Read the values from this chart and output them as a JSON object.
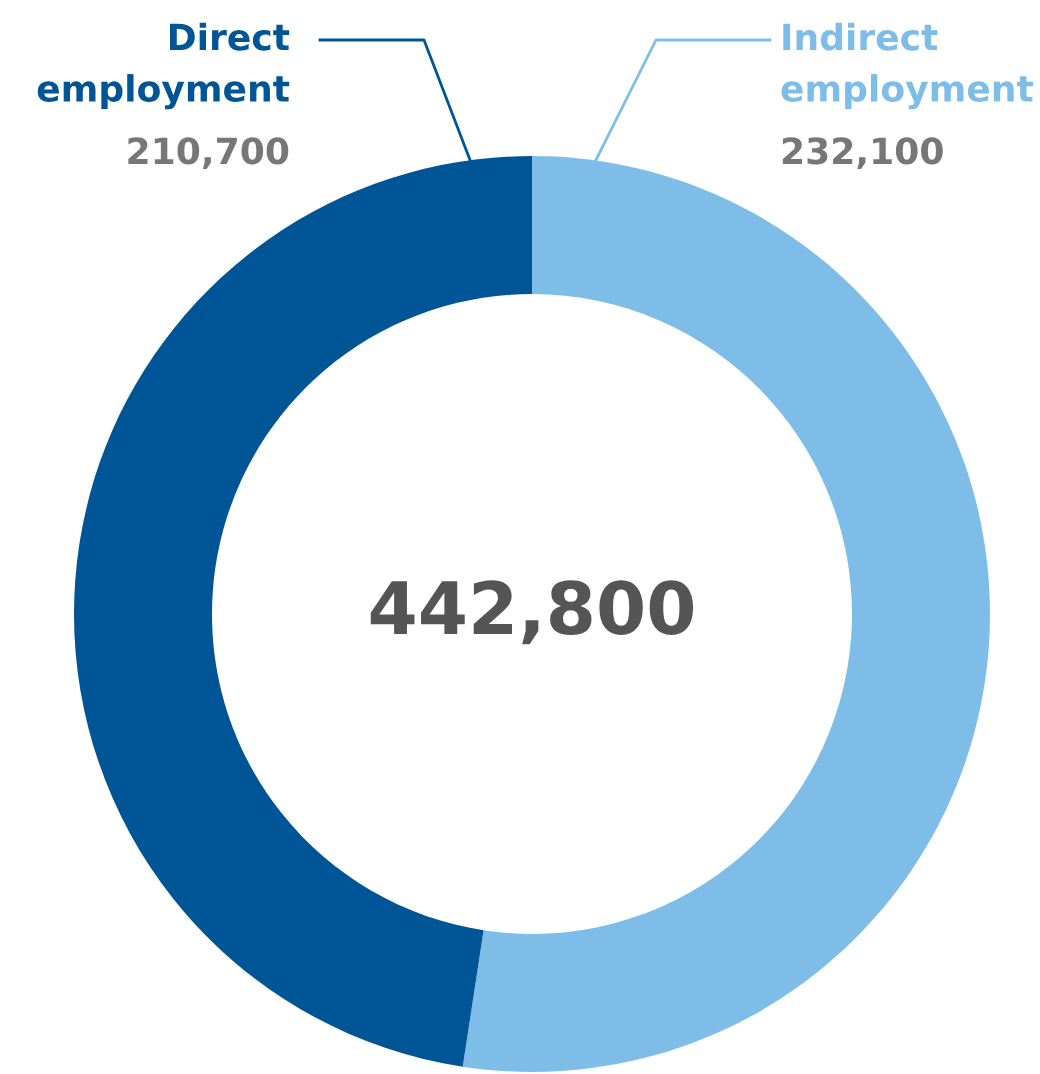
{
  "chart_data": {
    "type": "donut",
    "categories": [
      "Indirect employment",
      "Direct employment"
    ],
    "values": [
      232100,
      210700
    ],
    "colors": [
      "#7dbde8",
      "#005596"
    ],
    "value_labels": [
      "232,100",
      "210,700"
    ],
    "legend": false,
    "annotations": [
      "442,800"
    ]
  }
}
